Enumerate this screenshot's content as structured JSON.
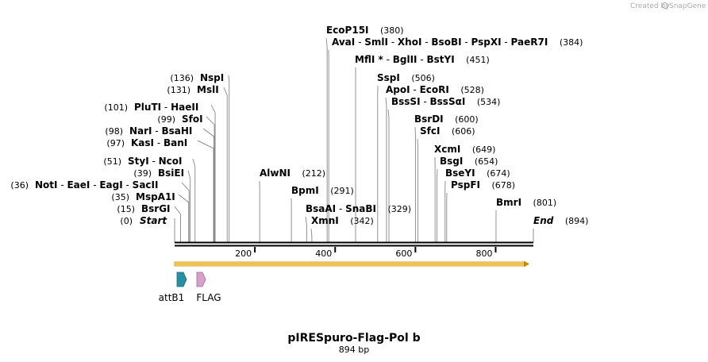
{
  "credit": {
    "prefix": "Created by",
    "brand": "SnapGene"
  },
  "title": "pIRESpuro-Flag-Pol b",
  "subtitle": "894 bp",
  "sequence_length": 894,
  "axis_ticks": [
    "200",
    "400",
    "600",
    "800"
  ],
  "sites": [
    {
      "position": 0,
      "pos_label": "(0)",
      "names": [
        "Start"
      ],
      "italic": true
    },
    {
      "position": 15,
      "pos_label": "(15)",
      "names": [
        "BsrGI"
      ]
    },
    {
      "position": 35,
      "pos_label": "(35)",
      "names": [
        "MspA1I"
      ]
    },
    {
      "position": 36,
      "pos_label": "(36)",
      "names": [
        "NotI",
        "EaeI",
        "EagI",
        "SacII"
      ]
    },
    {
      "position": 39,
      "pos_label": "(39)",
      "names": [
        "BsiEI"
      ]
    },
    {
      "position": 51,
      "pos_label": "(51)",
      "names": [
        "StyI",
        "NcoI"
      ]
    },
    {
      "position": 97,
      "pos_label": "(97)",
      "names": [
        "KasI",
        "BanI"
      ]
    },
    {
      "position": 98,
      "pos_label": "(98)",
      "names": [
        "NarI",
        "BsaHI"
      ]
    },
    {
      "position": 99,
      "pos_label": "(99)",
      "names": [
        "SfoI"
      ]
    },
    {
      "position": 101,
      "pos_label": "(101)",
      "names": [
        "PluTI",
        "HaeII"
      ]
    },
    {
      "position": 131,
      "pos_label": "(131)",
      "names": [
        "MslI"
      ]
    },
    {
      "position": 136,
      "pos_label": "(136)",
      "names": [
        "NspI"
      ]
    },
    {
      "position": 212,
      "pos_label": "(212)",
      "names": [
        "AlwNI"
      ]
    },
    {
      "position": 291,
      "pos_label": "(291)",
      "names": [
        "BpmI"
      ]
    },
    {
      "position": 329,
      "pos_label": "(329)",
      "names": [
        "BsaAI",
        "SnaBI"
      ]
    },
    {
      "position": 342,
      "pos_label": "(342)",
      "names": [
        "XmnI"
      ]
    },
    {
      "position": 380,
      "pos_label": "(380)",
      "names": [
        "EcoP15I"
      ]
    },
    {
      "position": 384,
      "pos_label": "(384)",
      "names": [
        "AvaI",
        "SmlI",
        "XhoI",
        "BsoBI",
        "PspXI",
        "PaeR7I"
      ]
    },
    {
      "position": 451,
      "pos_label": "(451)",
      "names": [
        "MflI *",
        "BglII",
        "BstYI"
      ]
    },
    {
      "position": 506,
      "pos_label": "(506)",
      "names": [
        "SspI"
      ]
    },
    {
      "position": 528,
      "pos_label": "(528)",
      "names": [
        "ApoI",
        "EcoRI"
      ]
    },
    {
      "position": 534,
      "pos_label": "(534)",
      "names": [
        "BssSI",
        "BssSαI"
      ]
    },
    {
      "position": 600,
      "pos_label": "(600)",
      "names": [
        "BsrDI"
      ]
    },
    {
      "position": 606,
      "pos_label": "(606)",
      "names": [
        "SfcI"
      ]
    },
    {
      "position": 649,
      "pos_label": "(649)",
      "names": [
        "XcmI"
      ]
    },
    {
      "position": 654,
      "pos_label": "(654)",
      "names": [
        "BsgI"
      ]
    },
    {
      "position": 674,
      "pos_label": "(674)",
      "names": [
        "BseYI"
      ]
    },
    {
      "position": 678,
      "pos_label": "(678)",
      "names": [
        "PspFI"
      ]
    },
    {
      "position": 801,
      "pos_label": "(801)",
      "names": [
        "BmrI"
      ]
    },
    {
      "position": 894,
      "pos_label": "(894)",
      "names": [
        "End"
      ],
      "italic": true
    }
  ],
  "features": [
    {
      "label": "attB1",
      "color": "#2a8fa3"
    },
    {
      "label": "FLAG",
      "color": "#d7a1c8"
    }
  ],
  "orf_color": "#f6b21b"
}
